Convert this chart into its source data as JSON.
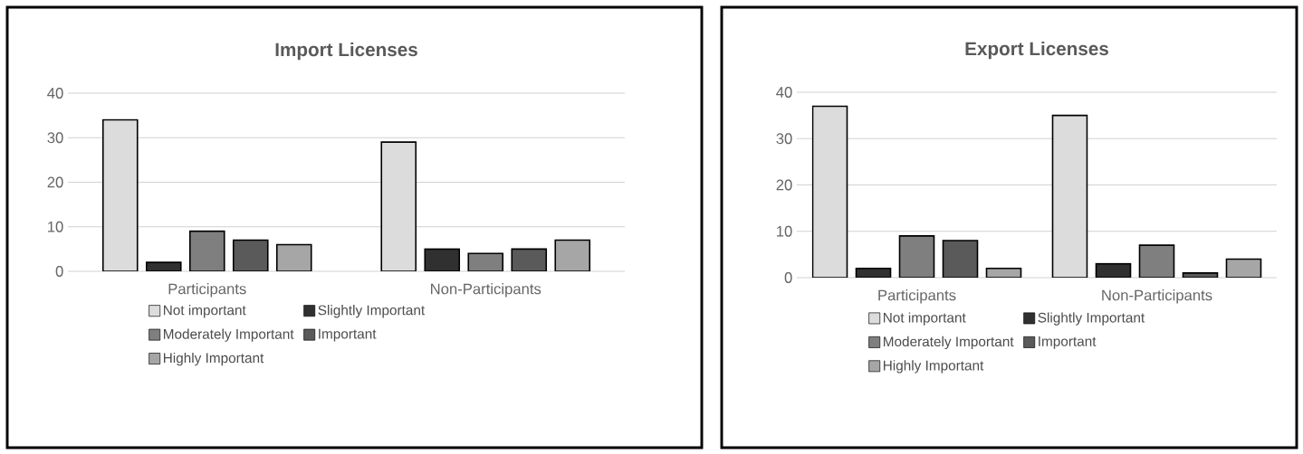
{
  "chart_data": [
    {
      "type": "bar",
      "title": "Import Licenses",
      "categories": [
        "Participants",
        "Non-Participants"
      ],
      "series": [
        {
          "name": "Not important",
          "color": "#dcdcdc",
          "values": [
            34,
            29
          ]
        },
        {
          "name": "Slightly Important",
          "color": "#303030",
          "values": [
            2,
            5
          ]
        },
        {
          "name": "Moderately Important",
          "color": "#7f7f7f",
          "values": [
            9,
            4
          ]
        },
        {
          "name": "Important",
          "color": "#5a5a5a",
          "values": [
            7,
            5
          ]
        },
        {
          "name": "Highly Important",
          "color": "#a6a6a6",
          "values": [
            6,
            7
          ]
        }
      ],
      "ylim": [
        0,
        40
      ],
      "yticks": [
        0,
        10,
        20,
        30,
        40
      ],
      "grid": "y",
      "legend": "bottom"
    },
    {
      "type": "bar",
      "title": "Export Licenses",
      "categories": [
        "Participants",
        "Non-Participants"
      ],
      "series": [
        {
          "name": "Not important",
          "color": "#dcdcdc",
          "values": [
            37,
            35
          ]
        },
        {
          "name": "Slightly Important",
          "color": "#303030",
          "values": [
            2,
            3
          ]
        },
        {
          "name": "Moderately Important",
          "color": "#7f7f7f",
          "values": [
            9,
            7
          ]
        },
        {
          "name": "Important",
          "color": "#5a5a5a",
          "values": [
            8,
            1
          ]
        },
        {
          "name": "Highly Important",
          "color": "#a6a6a6",
          "values": [
            2,
            4
          ]
        }
      ],
      "ylim": [
        0,
        40
      ],
      "yticks": [
        0,
        10,
        20,
        30,
        40
      ],
      "grid": "y",
      "legend": "bottom"
    }
  ]
}
